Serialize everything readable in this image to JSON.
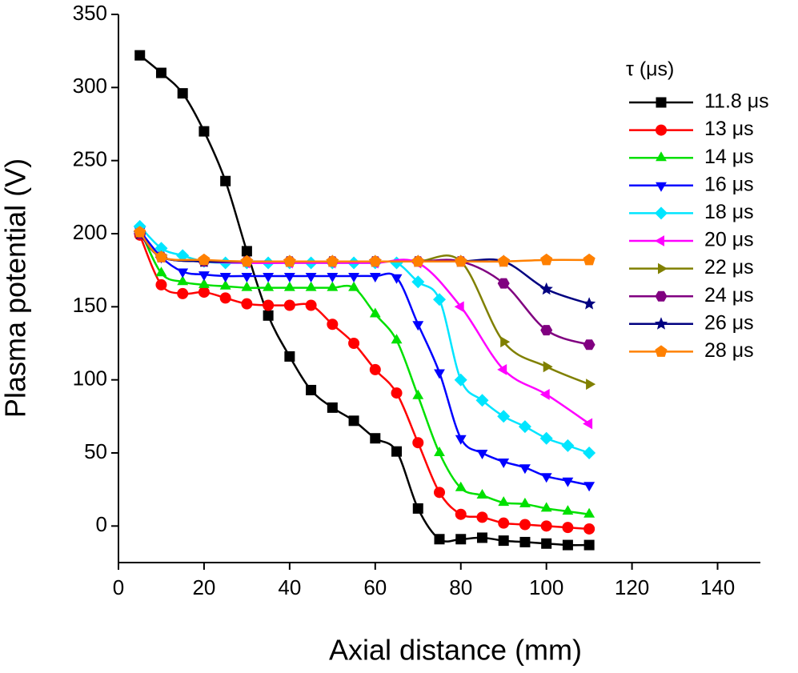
{
  "chart_data": {
    "type": "line",
    "x_label": "Axial distance (mm)",
    "y_label": "Plasma potential (V)",
    "legend_title": "τ (μs)",
    "xlim": [
      0,
      150
    ],
    "xticks": [
      0,
      20,
      40,
      60,
      80,
      100,
      120,
      140
    ],
    "ylim": [
      -25,
      350
    ],
    "yticks": [
      0,
      50,
      100,
      150,
      200,
      250,
      300,
      350
    ],
    "smooth": true,
    "series": [
      {
        "name": "11.8 μs",
        "color": "#000000",
        "marker": "square",
        "x": [
          5,
          10,
          15,
          20,
          25,
          30,
          35,
          40,
          45,
          50,
          55,
          60,
          65,
          70,
          75,
          80,
          85,
          90,
          95,
          100,
          105,
          110
        ],
        "values": [
          322,
          310,
          296,
          270,
          236,
          188,
          144,
          116,
          93,
          81,
          72,
          60,
          51,
          12,
          -9,
          -9,
          -8,
          -10,
          -11,
          -12,
          -13,
          -13
        ]
      },
      {
        "name": "13 μs",
        "color": "#ff0000",
        "marker": "circle",
        "x": [
          5,
          10,
          15,
          20,
          25,
          30,
          35,
          40,
          45,
          50,
          55,
          60,
          65,
          70,
          75,
          80,
          85,
          90,
          95,
          100,
          105,
          110
        ],
        "values": [
          199,
          165,
          159,
          160,
          156,
          152,
          151,
          151,
          151,
          138,
          125,
          107,
          91,
          57,
          23,
          8,
          6,
          2,
          1,
          0,
          -1,
          -2
        ]
      },
      {
        "name": "14 μs",
        "color": "#00e000",
        "marker": "triangle-up",
        "x": [
          5,
          10,
          15,
          20,
          25,
          30,
          35,
          40,
          45,
          50,
          55,
          60,
          65,
          70,
          75,
          80,
          85,
          90,
          95,
          100,
          105,
          110
        ],
        "values": [
          203,
          173,
          167,
          165,
          164,
          163,
          163,
          163,
          163,
          163,
          163,
          145,
          127,
          89,
          50,
          26,
          21,
          16,
          15,
          12,
          10,
          8
        ]
      },
      {
        "name": "16 μs",
        "color": "#0000ff",
        "marker": "triangle-down",
        "x": [
          5,
          10,
          15,
          20,
          25,
          30,
          35,
          40,
          45,
          50,
          55,
          60,
          65,
          70,
          75,
          80,
          85,
          90,
          95,
          100,
          105,
          110
        ],
        "values": [
          202,
          184,
          174,
          172,
          171,
          171,
          171,
          171,
          171,
          171,
          171,
          171,
          170,
          138,
          105,
          60,
          50,
          44,
          40,
          34,
          31,
          28
        ]
      },
      {
        "name": "18 μs",
        "color": "#00e5ff",
        "marker": "diamond",
        "x": [
          5,
          10,
          15,
          20,
          25,
          30,
          35,
          40,
          45,
          50,
          55,
          60,
          65,
          70,
          75,
          80,
          85,
          90,
          95,
          100,
          105,
          110
        ],
        "values": [
          205,
          190,
          185,
          181,
          180,
          180,
          180,
          180,
          180,
          180,
          180,
          180,
          180,
          167,
          155,
          100,
          86,
          75,
          68,
          60,
          55,
          50
        ]
      },
      {
        "name": "20 μs",
        "color": "#ff00ff",
        "marker": "triangle-left",
        "x": [
          5,
          10,
          20,
          30,
          40,
          50,
          60,
          70,
          80,
          90,
          100,
          110
        ],
        "values": [
          200,
          184,
          181,
          180,
          180,
          180,
          180,
          180,
          150,
          107,
          90,
          70
        ]
      },
      {
        "name": "22 μs",
        "color": "#808000",
        "marker": "triangle-right",
        "x": [
          5,
          10,
          20,
          30,
          40,
          50,
          60,
          70,
          80,
          90,
          100,
          110
        ],
        "values": [
          200,
          184,
          181,
          181,
          181,
          181,
          181,
          181,
          181,
          126,
          109,
          97
        ]
      },
      {
        "name": "24 μs",
        "color": "#800080",
        "marker": "hexagon",
        "x": [
          5,
          10,
          20,
          30,
          40,
          50,
          60,
          70,
          80,
          90,
          100,
          110
        ],
        "values": [
          200,
          184,
          181,
          181,
          181,
          181,
          181,
          181,
          181,
          166,
          134,
          124
        ]
      },
      {
        "name": "26 μs",
        "color": "#000080",
        "marker": "star",
        "x": [
          5,
          10,
          20,
          30,
          40,
          50,
          60,
          70,
          80,
          90,
          100,
          110
        ],
        "values": [
          200,
          184,
          181,
          181,
          181,
          181,
          181,
          181,
          181,
          181,
          162,
          152
        ]
      },
      {
        "name": "28 μs",
        "color": "#ff8000",
        "marker": "pentagon",
        "x": [
          5,
          10,
          20,
          30,
          40,
          50,
          60,
          70,
          80,
          90,
          100,
          110
        ],
        "values": [
          201,
          184,
          182,
          181,
          181,
          181,
          181,
          181,
          181,
          181,
          182,
          182
        ]
      }
    ]
  }
}
